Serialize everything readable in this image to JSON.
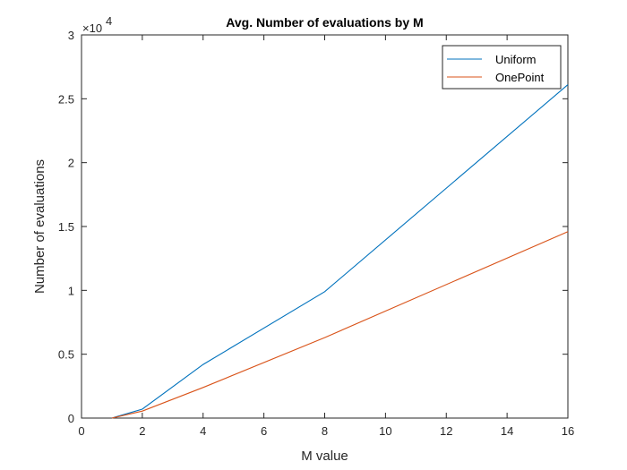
{
  "chart_data": {
    "type": "line",
    "title": "Avg. Number of evaluations by M",
    "xlabel": "M value",
    "ylabel": "Number of evaluations",
    "xlim": [
      0,
      16
    ],
    "ylim": [
      0,
      30000
    ],
    "xticks": [
      0,
      2,
      4,
      6,
      8,
      10,
      12,
      14,
      16
    ],
    "yticks": [
      0,
      5000,
      10000,
      15000,
      20000,
      25000,
      30000
    ],
    "ytick_labels": [
      "0",
      "0.5",
      "1",
      "1.5",
      "2",
      "2.5",
      "3"
    ],
    "y_exponent_label": "×10",
    "y_exponent_power": "4",
    "grid": false,
    "legend_position": "top-right",
    "series": [
      {
        "name": "Uniform",
        "color": "#0072BD",
        "x": [
          1,
          2,
          4,
          8,
          16
        ],
        "y": [
          0,
          700,
          4200,
          9900,
          26100
        ]
      },
      {
        "name": "OnePoint",
        "color": "#D95319",
        "x": [
          1,
          2,
          4,
          8,
          16
        ],
        "y": [
          0,
          550,
          2400,
          6300,
          14600
        ]
      }
    ]
  }
}
